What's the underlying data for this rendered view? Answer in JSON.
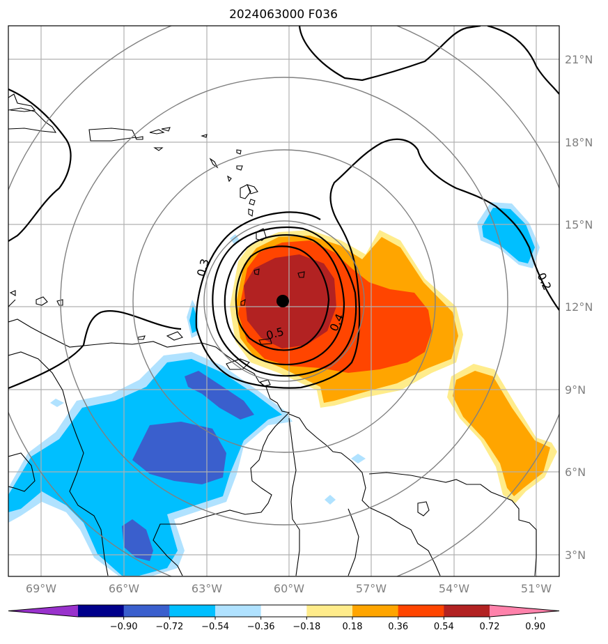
{
  "title": "2024063000 F036",
  "lat_labels": [
    "21°N",
    "18°N",
    "15°N",
    "12°N",
    "9°N",
    "6°N",
    "3°N"
  ],
  "lon_labels": [
    "69°W",
    "66°W",
    "63°W",
    "60°W",
    "57°W",
    "54°W",
    "51°W"
  ],
  "contour_labels": [
    "0.3",
    "0.5",
    "0.4",
    "0.2"
  ],
  "colorbar": {
    "tick_labels": [
      "−0.90",
      "−0.72",
      "−0.54",
      "−0.36",
      "−0.18",
      "0.18",
      "0.36",
      "0.54",
      "0.72",
      "0.90"
    ],
    "colors": [
      "#9932cc",
      "#00008b",
      "#3a5fcd",
      "#00bfff",
      "#b0e2ff",
      "#ffffff",
      "#ffec8b",
      "#ffa500",
      "#ff4500",
      "#b22222",
      "#ff82ab"
    ]
  },
  "colors": {
    "grid": "#b0b0b0",
    "range_rings": "#808080",
    "coastline": "#000000",
    "contour": "#000000",
    "storm_center": "#000000"
  },
  "icons": [
    "storm-center-marker"
  ]
}
